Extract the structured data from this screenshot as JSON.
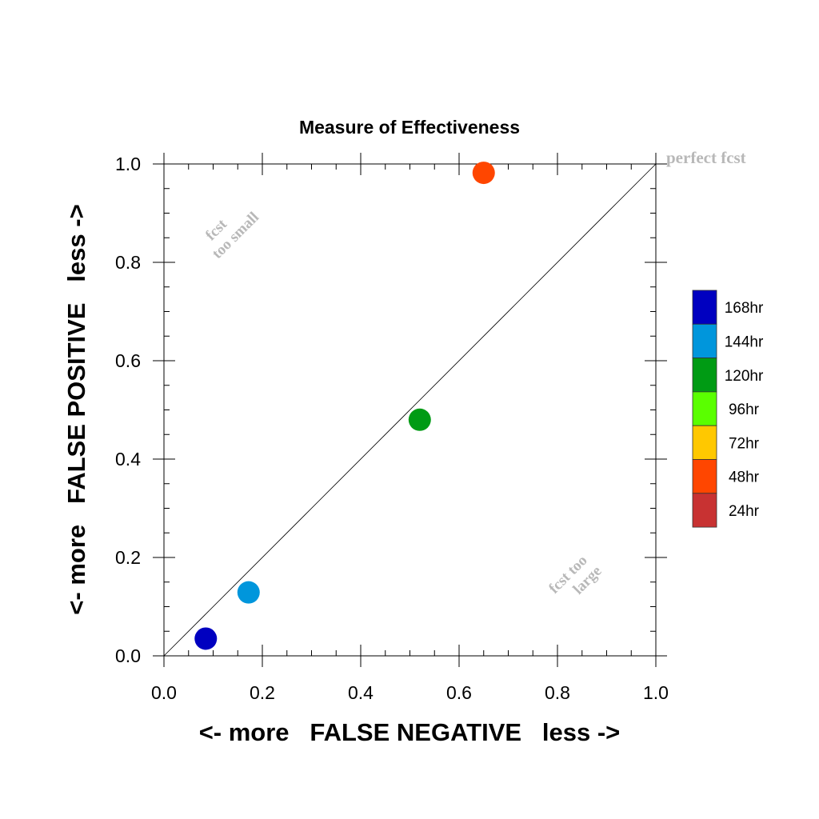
{
  "chart_data": {
    "type": "scatter",
    "title": "Measure of Effectiveness",
    "xlabel": "<- more   FALSE NEGATIVE   less ->",
    "ylabel": "<- more   FALSE POSITIVE   less ->",
    "xlim": [
      0.0,
      1.0
    ],
    "ylim": [
      0.0,
      1.0
    ],
    "xticks": [
      "0.0",
      "0.2",
      "0.4",
      "0.6",
      "0.8",
      "1.0"
    ],
    "yticks": [
      "0.0",
      "0.2",
      "0.4",
      "0.6",
      "0.8",
      "1.0"
    ],
    "grid": false,
    "diagonal_reference_line": true,
    "annotations": {
      "perfect": "perfect fcst",
      "too_small_line1": "fcst",
      "too_small_line2": "too small",
      "too_large_line1": "fcst too",
      "too_large_line2": "large"
    },
    "points": [
      {
        "label": "168hr",
        "x": 0.085,
        "y": 0.035,
        "color": "#0000c0"
      },
      {
        "label": "144hr",
        "x": 0.172,
        "y": 0.129,
        "color": "#0096dc"
      },
      {
        "label": "120hr",
        "x": 0.52,
        "y": 0.48,
        "color": "#009b14"
      },
      {
        "label": "48hr",
        "x": 0.65,
        "y": 0.982,
        "color": "#ff4600"
      }
    ],
    "legend": {
      "placement": "right",
      "entries": [
        {
          "label": "168hr",
          "color": "#0000c0"
        },
        {
          "label": "144hr",
          "color": "#0096dc"
        },
        {
          "label": "120hr",
          "color": "#009b14"
        },
        {
          "label": "96hr",
          "color": "#5aff00"
        },
        {
          "label": "72hr",
          "color": "#ffc800"
        },
        {
          "label": "48hr",
          "color": "#ff4600"
        },
        {
          "label": "24hr",
          "color": "#c83232"
        }
      ]
    },
    "annotation_color": "#b8b8b8"
  }
}
